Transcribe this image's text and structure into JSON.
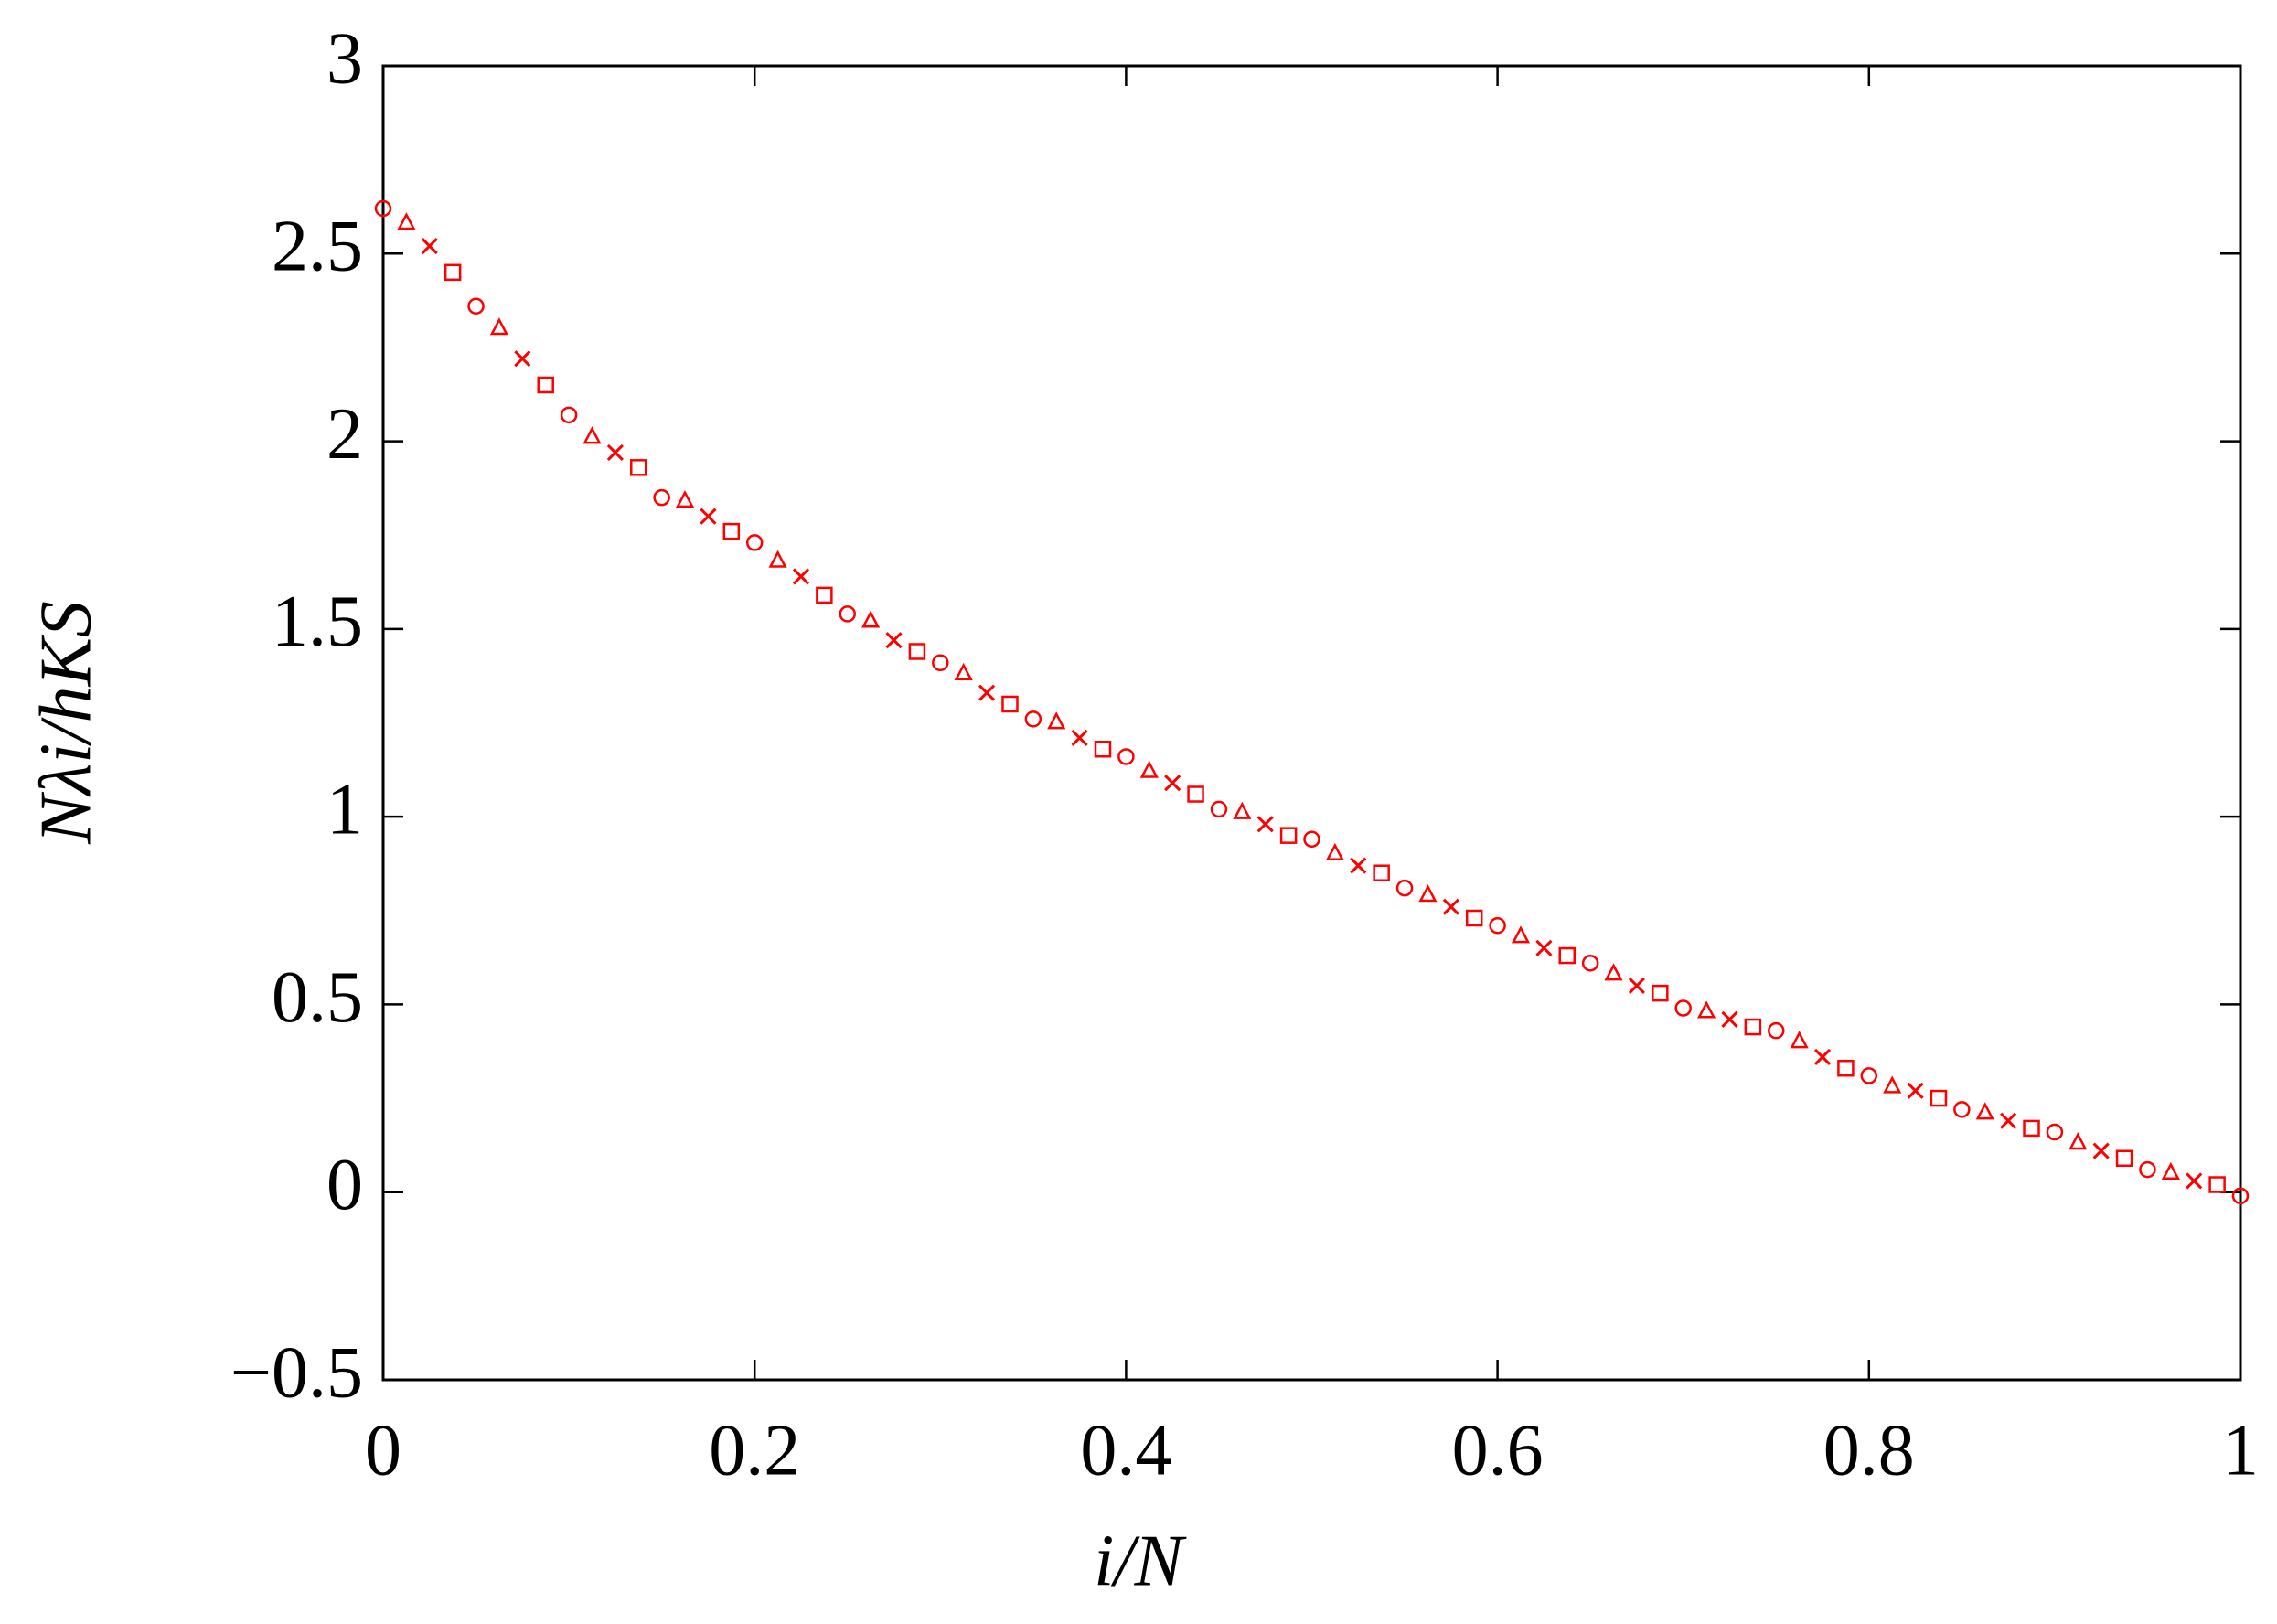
{
  "chart_data": {
    "type": "scatter",
    "x_label": "i/N",
    "y_label": "Nλi/hKS",
    "xlim": [
      0,
      1
    ],
    "ylim": [
      -0.5,
      3
    ],
    "xticks": [
      0,
      0.2,
      0.4,
      0.6,
      0.8,
      1
    ],
    "yticks": [
      {
        "value": -0.5,
        "label": "−0.5"
      },
      0,
      0.5,
      1,
      1.5,
      2,
      2.5,
      3
    ],
    "series": [
      {
        "color": "#ff0000",
        "marker": "circle",
        "x": [
          0,
          0.05,
          0.1,
          0.15,
          0.2,
          0.25,
          0.3,
          0.35,
          0.4,
          0.45,
          0.5,
          0.55,
          0.6,
          0.65,
          0.7,
          0.75,
          0.8,
          0.85,
          0.9,
          0.95,
          1
        ],
        "values": [
          2.62,
          2.36,
          2.07,
          1.85,
          1.73,
          1.54,
          1.41,
          1.26,
          1.16,
          1.02,
          0.94,
          0.81,
          0.71,
          0.61,
          0.49,
          0.43,
          0.31,
          0.22,
          0.16,
          0.06,
          -0.01
        ]
      },
      {
        "color": "#ff0000",
        "marker": "triangle",
        "x": [
          0.0125,
          0.0625,
          0.1125,
          0.1625,
          0.2125,
          0.2625,
          0.3125,
          0.3625,
          0.4125,
          0.4625,
          0.5125,
          0.5625,
          0.6125,
          0.6625,
          0.7125,
          0.7625,
          0.8125,
          0.8625,
          0.9125,
          0.9625
        ],
        "values": [
          2.58,
          2.3,
          2.01,
          1.84,
          1.68,
          1.52,
          1.38,
          1.25,
          1.12,
          1.01,
          0.9,
          0.79,
          0.68,
          0.58,
          0.48,
          0.4,
          0.28,
          0.21,
          0.13,
          0.05
        ]
      },
      {
        "color": "#ff0000",
        "marker": "cross",
        "x": [
          0.025,
          0.075,
          0.125,
          0.175,
          0.225,
          0.275,
          0.325,
          0.375,
          0.425,
          0.475,
          0.525,
          0.575,
          0.625,
          0.675,
          0.725,
          0.775,
          0.825,
          0.875,
          0.925,
          0.975
        ],
        "values": [
          2.52,
          2.22,
          1.97,
          1.8,
          1.64,
          1.47,
          1.33,
          1.21,
          1.09,
          0.98,
          0.87,
          0.76,
          0.65,
          0.55,
          0.46,
          0.36,
          0.27,
          0.19,
          0.11,
          0.03
        ]
      },
      {
        "color": "#ff0000",
        "marker": "square",
        "x": [
          0.0375,
          0.0875,
          0.1375,
          0.1875,
          0.2375,
          0.2875,
          0.3375,
          0.3875,
          0.4375,
          0.4875,
          0.5375,
          0.5875,
          0.6375,
          0.6875,
          0.7375,
          0.7875,
          0.8375,
          0.8875,
          0.9375,
          0.9875
        ],
        "values": [
          2.45,
          2.15,
          1.93,
          1.76,
          1.59,
          1.44,
          1.3,
          1.18,
          1.06,
          0.95,
          0.85,
          0.73,
          0.63,
          0.53,
          0.44,
          0.33,
          0.25,
          0.17,
          0.09,
          0.02
        ]
      }
    ]
  }
}
